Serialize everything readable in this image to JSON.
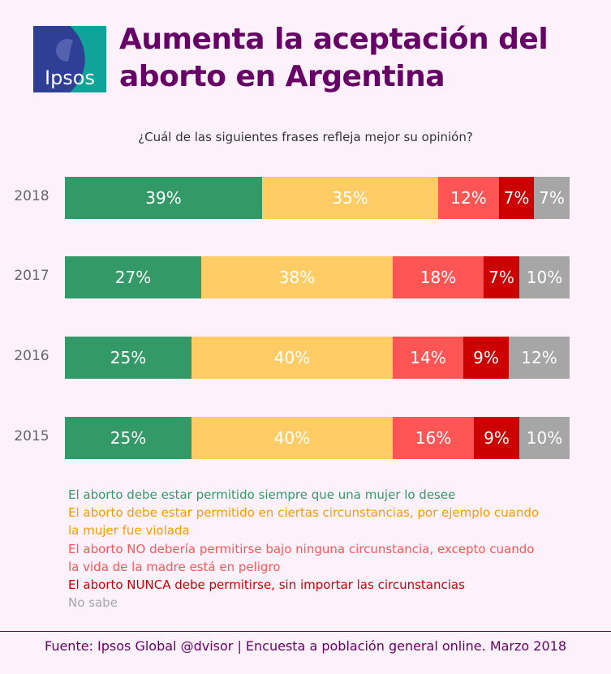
{
  "logo_text": "Ipsos",
  "title_lines": [
    "Aumenta la aceptación del",
    "aborto en Argentina"
  ],
  "chart_data": {
    "type": "bar",
    "orientation": "horizontal-stacked-100",
    "title": "¿Cuál de las siguientes frases refleja mejor su opinión?",
    "categories": [
      "2018",
      "2017",
      "2016",
      "2015"
    ],
    "series": [
      {
        "name": "El aborto debe estar permitido siempre que una mujer lo desee",
        "color": "#339966",
        "values": [
          39,
          27,
          25,
          25
        ]
      },
      {
        "name": "El aborto debe estar permitido en ciertas circunstancias, por ejemplo cuando la mujer fue violada",
        "color": "#ffcc66",
        "legend_color": "#ff9900",
        "values": [
          35,
          38,
          40,
          40
        ]
      },
      {
        "name": "El aborto NO debería permitirse bajo ninguna circunstancia, excepto cuando la vida de la madre está en peligro",
        "color": "#ff5555",
        "values": [
          12,
          18,
          14,
          16
        ]
      },
      {
        "name": "El aborto NUNCA debe permitirse, sin importar las circunstancias",
        "color": "#cc0000",
        "values": [
          7,
          7,
          9,
          9
        ]
      },
      {
        "name": "No sabe",
        "color": "#a6a6a6",
        "values": [
          7,
          10,
          12,
          10
        ]
      }
    ],
    "value_suffix": "%",
    "legend": "bottom"
  },
  "legend_lines": [
    [
      "El aborto debe estar permitido siempre que una mujer lo desee"
    ],
    [
      "El aborto debe estar permitido en ciertas circunstancias, por ejemplo cuando",
      "la mujer fue violada"
    ],
    [
      "El aborto NO debería permitirse bajo ninguna circunstancia, excepto cuando",
      "la vida de la madre está en peligro"
    ],
    [
      "El aborto NUNCA debe permitirse, sin importar las circunstancias"
    ],
    [
      "No sabe"
    ]
  ],
  "footer": "Fuente: Ipsos Global @dvisor | Encuesta a población general online. Marzo 2018"
}
